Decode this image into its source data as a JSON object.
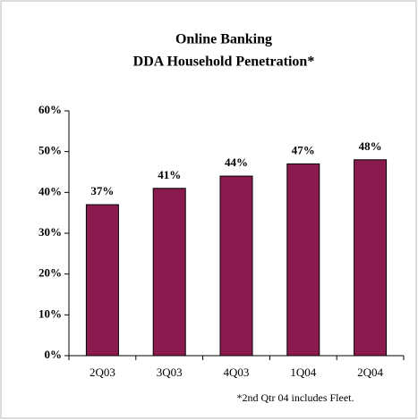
{
  "chart_data": {
    "type": "bar",
    "title": "Online Banking",
    "subtitle": "DDA Household Penetration*",
    "categories": [
      "2Q03",
      "3Q03",
      "4Q03",
      "1Q04",
      "2Q04"
    ],
    "values": [
      37,
      41,
      44,
      47,
      48
    ],
    "value_labels": [
      "37%",
      "41%",
      "44%",
      "47%",
      "48%"
    ],
    "color": "#8b1a4e",
    "ylim": [
      0,
      60
    ],
    "yticks": [
      {
        "value": 0,
        "label": "0%"
      },
      {
        "value": 10,
        "label": "10%"
      },
      {
        "value": 20,
        "label": "20%"
      },
      {
        "value": 30,
        "label": "30%"
      },
      {
        "value": 40,
        "label": "40%"
      },
      {
        "value": 50,
        "label": "50%"
      },
      {
        "value": 60,
        "label": "60%"
      }
    ],
    "annotation": "*2nd Qtr 04 includes Fleet."
  }
}
